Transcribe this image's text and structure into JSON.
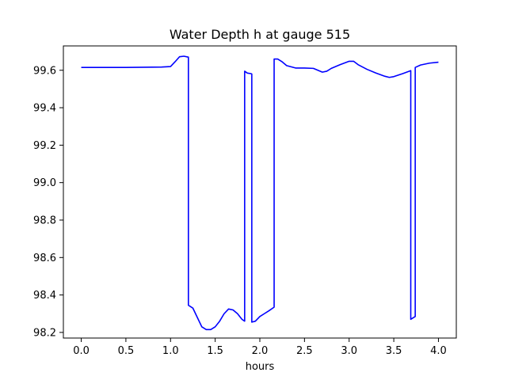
{
  "chart_data": {
    "type": "line",
    "title": "Water Depth h at gauge 515",
    "xlabel": "hours",
    "ylabel": "",
    "xlim": [
      -0.2,
      4.2
    ],
    "ylim": [
      98.17,
      99.73
    ],
    "xticks": [
      0.0,
      0.5,
      1.0,
      1.5,
      2.0,
      2.5,
      3.0,
      3.5,
      4.0
    ],
    "xtick_labels": [
      "0.0",
      "0.5",
      "1.0",
      "1.5",
      "2.0",
      "2.5",
      "3.0",
      "3.5",
      "4.0"
    ],
    "yticks": [
      98.2,
      98.4,
      98.6,
      98.8,
      99.0,
      99.2,
      99.4,
      99.6
    ],
    "ytick_labels": [
      "98.2",
      "98.4",
      "98.6",
      "98.8",
      "99.0",
      "99.2",
      "99.4",
      "99.6"
    ],
    "grid": false,
    "series": [
      {
        "color": "#0000ff",
        "x": [
          0.0,
          0.5,
          0.9,
          1.0,
          1.05,
          1.1,
          1.15,
          1.2,
          1.2,
          1.25,
          1.3,
          1.35,
          1.4,
          1.45,
          1.5,
          1.55,
          1.6,
          1.65,
          1.7,
          1.75,
          1.8,
          1.83,
          1.83,
          1.86,
          1.9,
          1.91,
          1.91,
          1.95,
          2.0,
          2.05,
          2.1,
          2.16,
          2.16,
          2.2,
          2.25,
          2.3,
          2.4,
          2.5,
          2.6,
          2.65,
          2.7,
          2.75,
          2.8,
          2.9,
          3.0,
          3.05,
          3.1,
          3.2,
          3.3,
          3.4,
          3.45,
          3.5,
          3.6,
          3.69,
          3.69,
          3.74,
          3.74,
          3.8,
          3.9,
          4.0
        ],
        "y": [
          99.615,
          99.615,
          99.617,
          99.62,
          99.645,
          99.672,
          99.675,
          99.67,
          98.345,
          98.33,
          98.28,
          98.23,
          98.215,
          98.215,
          98.23,
          98.26,
          98.3,
          98.325,
          98.32,
          98.3,
          98.27,
          98.26,
          99.595,
          99.585,
          99.582,
          99.58,
          98.255,
          98.26,
          98.285,
          98.3,
          98.315,
          98.335,
          99.66,
          99.66,
          99.645,
          99.625,
          99.612,
          99.612,
          99.61,
          99.6,
          99.59,
          99.595,
          99.61,
          99.63,
          99.648,
          99.648,
          99.63,
          99.605,
          99.585,
          99.568,
          99.562,
          99.566,
          99.582,
          99.598,
          98.27,
          98.285,
          99.615,
          99.628,
          99.638,
          99.643
        ]
      }
    ]
  }
}
